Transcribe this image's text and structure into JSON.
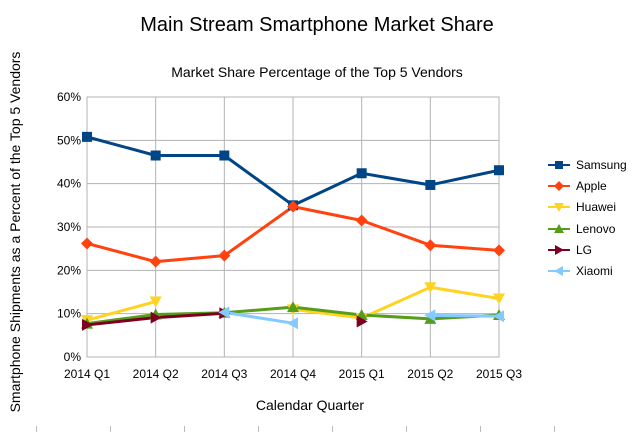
{
  "chart_data": {
    "type": "line",
    "title": "Main Stream Smartphone Market Share",
    "subtitle": "Market Share Percentage of the Top 5 Vendors",
    "xlabel": "Calendar Quarter",
    "ylabel": "Smartphone Shipments as a Percent of the Top 5 Vendors",
    "ylim": [
      0,
      60
    ],
    "yticks": [
      "0%",
      "10%",
      "20%",
      "30%",
      "40%",
      "50%",
      "60%"
    ],
    "categories": [
      "2014 Q1",
      "2014 Q2",
      "2014 Q3",
      "2014 Q4",
      "2015 Q1",
      "2015 Q2",
      "2015 Q3"
    ],
    "grid": true,
    "legend_position": "right",
    "series": [
      {
        "name": "Samsung",
        "color": "#004586",
        "marker": "square",
        "values": [
          50.8,
          46.5,
          46.5,
          35.0,
          42.4,
          39.7,
          43.1
        ]
      },
      {
        "name": "Apple",
        "color": "#ff420e",
        "marker": "diamond",
        "values": [
          26.2,
          22.0,
          23.4,
          34.7,
          31.5,
          25.8,
          24.6
        ]
      },
      {
        "name": "Huawei",
        "color": "#ffd320",
        "marker": "triangle-down",
        "values": [
          8.5,
          12.8,
          null,
          11.0,
          9.0,
          16.1,
          13.5
        ]
      },
      {
        "name": "Lenovo",
        "color": "#579d1c",
        "marker": "triangle-up",
        "values": [
          7.7,
          9.8,
          10.2,
          11.5,
          9.7,
          8.8,
          9.7
        ]
      },
      {
        "name": "LG",
        "color": "#7e0021",
        "marker": "triangle-right",
        "values": [
          7.4,
          9.1,
          10.1,
          null,
          8.2,
          null,
          null
        ]
      },
      {
        "name": "Xiaomi",
        "color": "#83caff",
        "marker": "triangle-left",
        "values": [
          null,
          null,
          10.3,
          7.8,
          null,
          9.6,
          9.4
        ]
      }
    ]
  }
}
